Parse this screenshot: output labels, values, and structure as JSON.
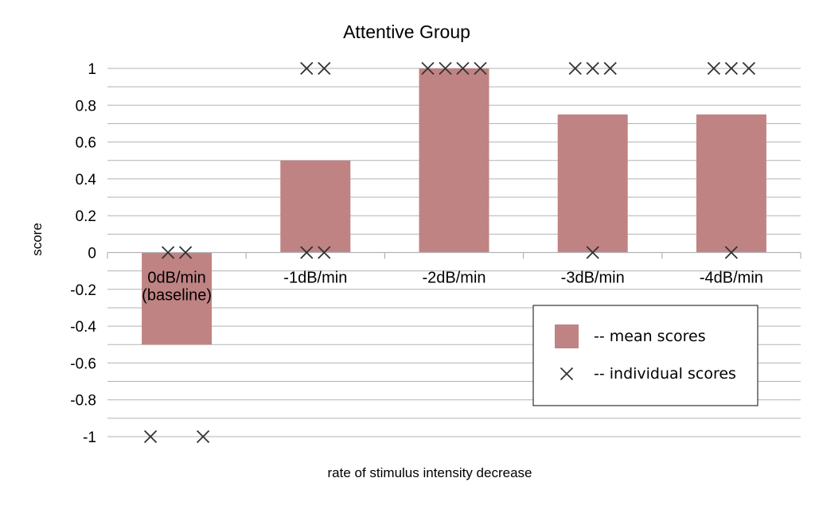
{
  "chart_data": {
    "type": "bar",
    "title": "Attentive Group",
    "xlabel": "rate of stimulus intensity decrease",
    "ylabel": "score",
    "ylim": [
      -1,
      1
    ],
    "yticks": [
      1,
      0.8,
      0.6,
      0.4,
      0.2,
      0,
      -0.2,
      -0.4,
      -0.6,
      -0.8,
      -1
    ],
    "ytick_labels": [
      "1",
      "0.8",
      "0.6",
      "0.4",
      "0.2",
      "0",
      "-0.2",
      "-0.4",
      "-0.6",
      "-0.8",
      "-1"
    ],
    "grid": true,
    "categories": [
      [
        "0dB/min",
        "(baseline)"
      ],
      [
        "-1dB/min"
      ],
      [
        "-2dB/min"
      ],
      [
        "-3dB/min"
      ],
      [
        "-4dB/min"
      ]
    ],
    "series": [
      {
        "name": "-- mean scores",
        "kind": "bar",
        "color": "#c08383",
        "values": [
          -0.5,
          0.5,
          1,
          0.75,
          0.75
        ]
      },
      {
        "name": "-- individual scores",
        "kind": "scatter",
        "marker": "x",
        "color": "#333333",
        "points": [
          [
            0,
            0
          ],
          [
            0,
            0
          ],
          [
            0,
            -1
          ],
          [
            0,
            -1
          ],
          [
            1,
            1
          ],
          [
            1,
            1
          ],
          [
            1,
            0
          ],
          [
            1,
            0
          ],
          [
            2,
            1
          ],
          [
            2,
            1
          ],
          [
            2,
            1
          ],
          [
            2,
            1
          ],
          [
            3,
            1
          ],
          [
            3,
            1
          ],
          [
            3,
            1
          ],
          [
            3,
            0
          ],
          [
            4,
            1
          ],
          [
            4,
            1
          ],
          [
            4,
            1
          ],
          [
            4,
            0
          ]
        ]
      }
    ],
    "legend_position": "bottom-right"
  }
}
